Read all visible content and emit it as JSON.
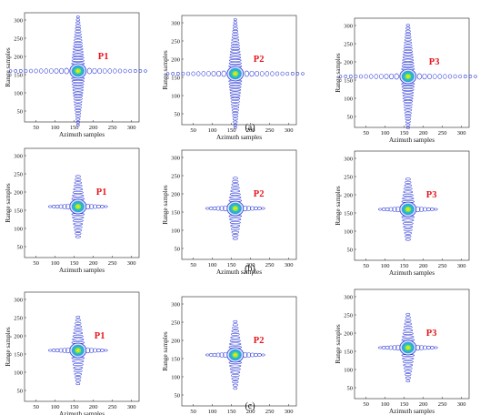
{
  "figure": {
    "rows": [
      {
        "caption": "(a)",
        "panels": [
          {
            "label": "P1",
            "xlabel": "Azimuth samples",
            "ylabel": "Range samples",
            "xticks": [
              50,
              100,
              150,
              200,
              250,
              300
            ],
            "yticks": [
              50,
              100,
              150,
              200,
              250,
              300
            ]
          },
          {
            "label": "P2",
            "xlabel": "Azimuth samples",
            "ylabel": "Range samples",
            "xticks": [
              50,
              100,
              150,
              200,
              250,
              300
            ],
            "yticks": [
              50,
              100,
              150,
              200,
              250,
              300
            ]
          },
          {
            "label": "P3",
            "xlabel": "Azimuth samples",
            "ylabel": "Range samples",
            "xticks": [
              50,
              100,
              150,
              200,
              250,
              300
            ],
            "yticks": [
              50,
              100,
              150,
              200,
              250,
              300
            ]
          }
        ]
      },
      {
        "caption": "(b)",
        "panels": [
          {
            "label": "P1",
            "xlabel": "Azimuth samples",
            "ylabel": "Range samples",
            "xticks": [
              50,
              100,
              150,
              200,
              250,
              300
            ],
            "yticks": [
              50,
              100,
              150,
              200,
              250,
              300
            ]
          },
          {
            "label": "P2",
            "xlabel": "Azimuth samples",
            "ylabel": "Range samples",
            "xticks": [
              50,
              100,
              150,
              200,
              250,
              300
            ],
            "yticks": [
              50,
              100,
              150,
              200,
              250,
              300
            ]
          },
          {
            "label": "P3",
            "xlabel": "Azimuth samples",
            "ylabel": "Range samples",
            "xticks": [
              50,
              100,
              150,
              200,
              250,
              300
            ],
            "yticks": [
              50,
              100,
              150,
              200,
              250,
              300
            ]
          }
        ]
      },
      {
        "caption": "(c)",
        "panels": [
          {
            "label": "P1",
            "xlabel": "Azimuth samples",
            "ylabel": "Range samples",
            "xticks": [
              50,
              100,
              150,
              200,
              250,
              300
            ],
            "yticks": [
              50,
              100,
              150,
              200,
              250,
              300
            ]
          },
          {
            "label": "P2",
            "xlabel": "Azimuth samples",
            "ylabel": "Range samples",
            "xticks": [
              50,
              100,
              150,
              200,
              250,
              300
            ],
            "yticks": [
              50,
              100,
              150,
              200,
              250,
              300
            ]
          },
          {
            "label": "P3",
            "xlabel": "Azimuth samples",
            "ylabel": "Range samples",
            "xticks": [
              50,
              100,
              150,
              200,
              250,
              300
            ],
            "yticks": [
              50,
              100,
              150,
              200,
              250,
              300
            ]
          }
        ]
      }
    ]
  },
  "chart_data": [
    {
      "type": "contour",
      "row": "(a)",
      "label": "P1",
      "xlabel": "Azimuth samples",
      "ylabel": "Range samples",
      "xlim": [
        20,
        320
      ],
      "ylim": [
        20,
        320
      ],
      "peak": {
        "x": 160,
        "y": 160
      },
      "sidelobe_extent": {
        "azimuth": [
          35,
          295
        ],
        "range": [
          45,
          300
        ]
      },
      "colors": {
        "peak": "#e8e800",
        "mid": "#21c4b5",
        "sidelobe": "#2a37d6"
      }
    },
    {
      "type": "contour",
      "row": "(a)",
      "label": "P2",
      "xlabel": "Azimuth samples",
      "ylabel": "Range samples",
      "xlim": [
        20,
        320
      ],
      "ylim": [
        20,
        320
      ],
      "peak": {
        "x": 160,
        "y": 160
      },
      "sidelobe_extent": {
        "azimuth": [
          35,
          295
        ],
        "range": [
          25,
          280
        ]
      },
      "colors": {
        "peak": "#e8e800",
        "mid": "#21c4b5",
        "sidelobe": "#2a37d6"
      }
    },
    {
      "type": "contour",
      "row": "(a)",
      "label": "P3",
      "xlabel": "Azimuth samples",
      "ylabel": "Range samples",
      "xlim": [
        20,
        320
      ],
      "ylim": [
        20,
        320
      ],
      "peak": {
        "x": 160,
        "y": 160
      },
      "sidelobe_extent": {
        "azimuth": [
          35,
          285
        ],
        "range": [
          40,
          275
        ]
      },
      "colors": {
        "peak": "#e8e800",
        "mid": "#21c4b5",
        "sidelobe": "#2a37d6"
      }
    },
    {
      "type": "contour",
      "row": "(b)",
      "label": "P1",
      "xlabel": "Azimuth samples",
      "ylabel": "Range samples",
      "xlim": [
        20,
        320
      ],
      "ylim": [
        20,
        320
      ],
      "peak": {
        "x": 160,
        "y": 160
      },
      "sidelobe_extent": {
        "azimuth": [
          115,
          205
        ],
        "range": [
          130,
          195
        ]
      },
      "colors": {
        "peak": "#e8e800",
        "mid": "#21c4b5",
        "sidelobe": "#2a37d6"
      }
    },
    {
      "type": "contour",
      "row": "(b)",
      "label": "P2",
      "xlabel": "Azimuth samples",
      "ylabel": "Range samples",
      "xlim": [
        20,
        320
      ],
      "ylim": [
        20,
        320
      ],
      "peak": {
        "x": 160,
        "y": 160
      },
      "sidelobe_extent": {
        "azimuth": [
          115,
          205
        ],
        "range": [
          130,
          195
        ]
      },
      "colors": {
        "peak": "#e8e800",
        "mid": "#21c4b5",
        "sidelobe": "#2a37d6"
      }
    },
    {
      "type": "contour",
      "row": "(b)",
      "label": "P3",
      "xlabel": "Azimuth samples",
      "ylabel": "Range samples",
      "xlim": [
        20,
        320
      ],
      "ylim": [
        20,
        320
      ],
      "peak": {
        "x": 160,
        "y": 160
      },
      "sidelobe_extent": {
        "azimuth": [
          115,
          205
        ],
        "range": [
          130,
          195
        ]
      },
      "colors": {
        "peak": "#e8e800",
        "mid": "#21c4b5",
        "sidelobe": "#2a37d6"
      }
    },
    {
      "type": "contour",
      "row": "(c)",
      "label": "P1",
      "xlabel": "Azimuth samples",
      "ylabel": "Range samples",
      "xlim": [
        20,
        320
      ],
      "ylim": [
        20,
        320
      ],
      "peak": {
        "x": 160,
        "y": 160
      },
      "sidelobe_extent": {
        "azimuth": [
          115,
          205
        ],
        "range": [
          105,
          220
        ]
      },
      "colors": {
        "peak": "#e8e800",
        "mid": "#21c4b5",
        "sidelobe": "#2a37d6"
      }
    },
    {
      "type": "contour",
      "row": "(c)",
      "label": "P2",
      "xlabel": "Azimuth samples",
      "ylabel": "Range samples",
      "xlim": [
        20,
        320
      ],
      "ylim": [
        20,
        320
      ],
      "peak": {
        "x": 160,
        "y": 160
      },
      "sidelobe_extent": {
        "azimuth": [
          115,
          205
        ],
        "range": [
          110,
          210
        ]
      },
      "colors": {
        "peak": "#e8e800",
        "mid": "#21c4b5",
        "sidelobe": "#2a37d6"
      }
    },
    {
      "type": "contour",
      "row": "(c)",
      "label": "P3",
      "xlabel": "Azimuth samples",
      "ylabel": "Range samples",
      "xlim": [
        20,
        320
      ],
      "ylim": [
        20,
        320
      ],
      "peak": {
        "x": 160,
        "y": 160
      },
      "sidelobe_extent": {
        "azimuth": [
          115,
          205
        ],
        "range": [
          105,
          215
        ]
      },
      "colors": {
        "peak": "#e8e800",
        "mid": "#21c4b5",
        "sidelobe": "#2a37d6"
      }
    }
  ]
}
